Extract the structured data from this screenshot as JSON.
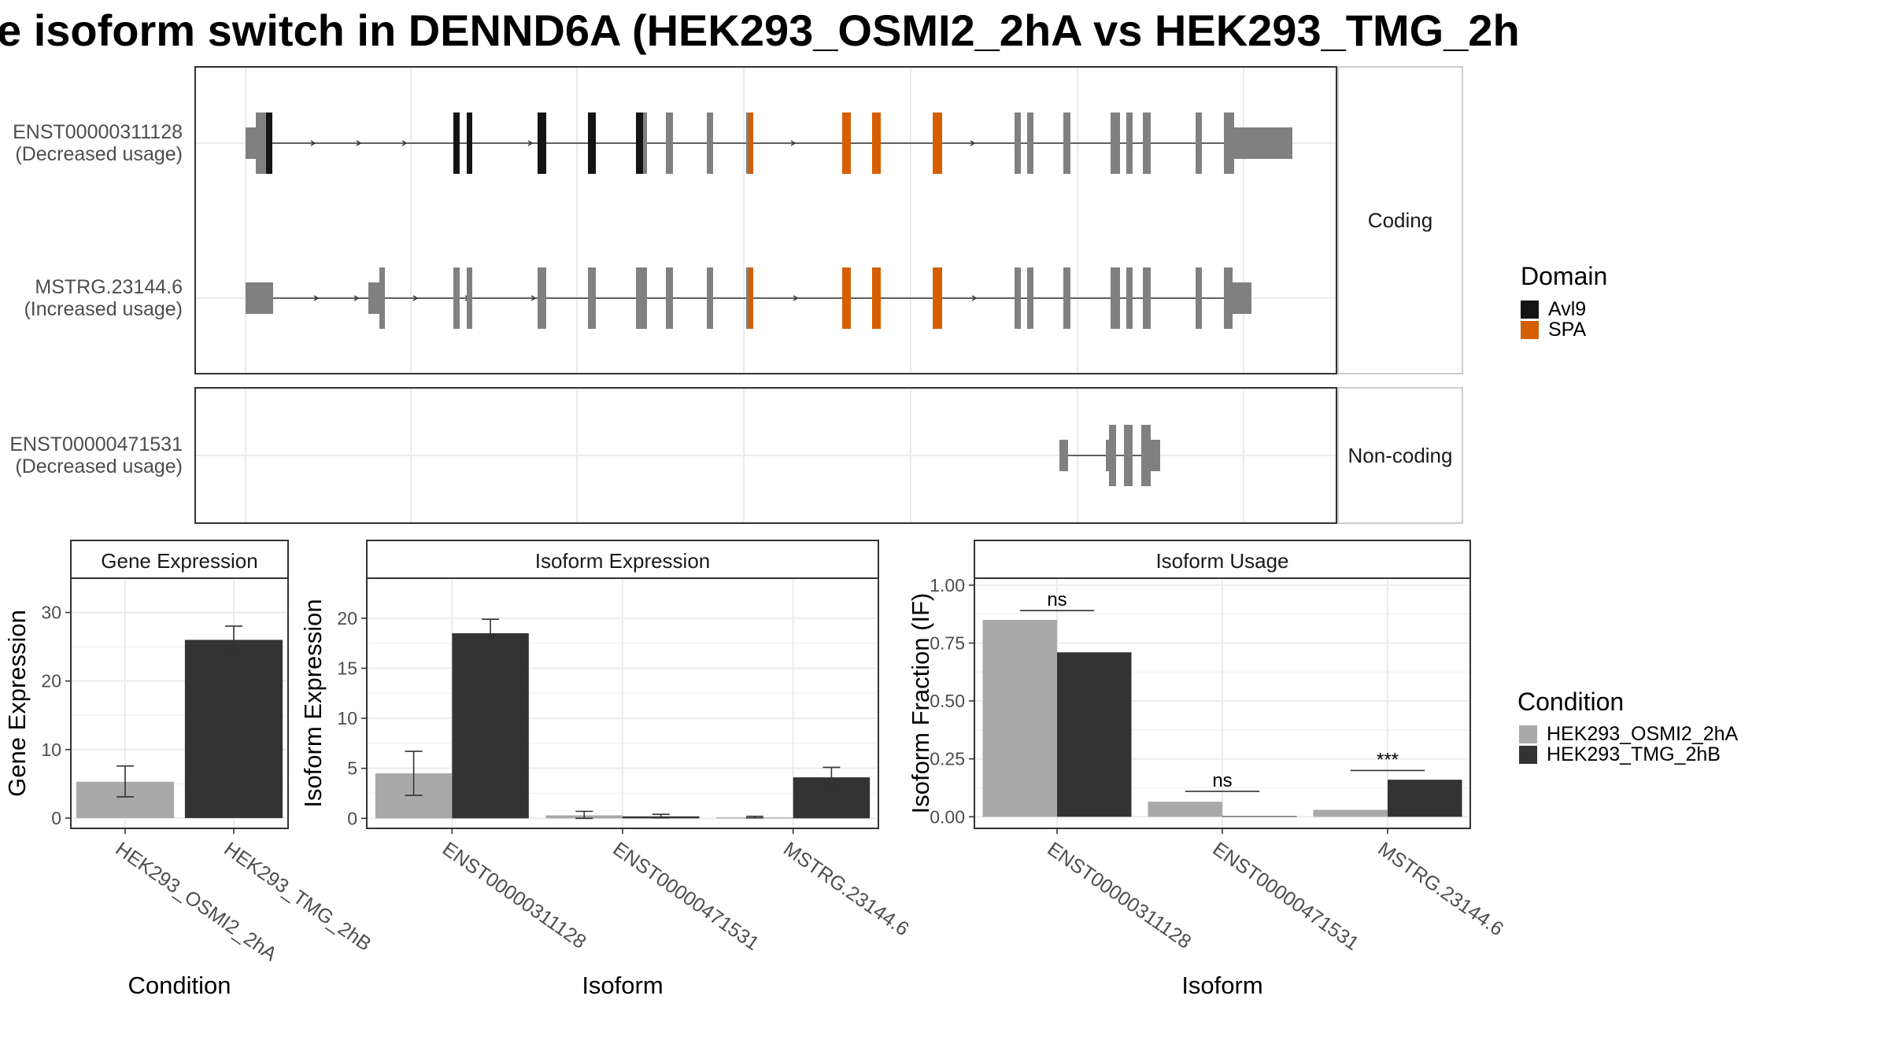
{
  "title": "e isoform switch in DENND6A (HEK293_OSMI2_2hA vs HEK293_TMG_2h",
  "colors": {
    "condition_a": "#a9a9a9",
    "condition_b": "#333333",
    "domain_avl9": "#141414",
    "domain_spa": "#d55e00",
    "exon_plain": "#808080",
    "panel_border": "#333333",
    "strip_fill": "#ffffff",
    "grid": "#ebebeb"
  },
  "structure": {
    "coding_label": "Coding",
    "noncoding_label": "Non-coding",
    "transcripts": [
      {
        "id": "ENST00000311128",
        "usage": "(Decreased usage)",
        "group": "coding"
      },
      {
        "id": "MSTRG.23144.6",
        "usage": "(Increased usage)",
        "group": "coding"
      },
      {
        "id": "ENST00000471531",
        "usage": "(Decreased usage)",
        "group": "non-coding"
      }
    ],
    "legend_title": "Domain",
    "legend_items": [
      {
        "label": "Avl9",
        "color": "#141414"
      },
      {
        "label": "SPA",
        "color": "#d55e00"
      }
    ]
  },
  "condition_legend": {
    "title": "Condition",
    "items": [
      {
        "label": "HEK293_OSMI2_2hA",
        "color": "#a9a9a9"
      },
      {
        "label": "HEK293_TMG_2hB",
        "color": "#333333"
      }
    ]
  },
  "chart_data": [
    {
      "type": "bar",
      "title": "Gene Expression",
      "xlabel": "Condition",
      "ylabel": "Gene Expression",
      "categories": [
        "HEK293_OSMI2_2hA",
        "HEK293_TMG_2hB"
      ],
      "ylim": [
        -1.5,
        35
      ],
      "yticks": [
        0,
        10,
        20,
        30
      ],
      "ytick_labels": [
        "0",
        "10",
        "20",
        "30"
      ],
      "bars": [
        {
          "category": "HEK293_OSMI2_2hA",
          "condition": "HEK293_OSMI2_2hA",
          "value": 5.3,
          "err_low": 3.1,
          "err_high": 7.6
        },
        {
          "category": "HEK293_TMG_2hB",
          "condition": "HEK293_TMG_2hB",
          "value": 26.0,
          "err_low": 24.2,
          "err_high": 28.0
        }
      ]
    },
    {
      "type": "bar",
      "title": "Isoform Expression",
      "xlabel": "Isoform",
      "ylabel": "Isoform Expression",
      "categories": [
        "ENST00000311128",
        "ENST00000471531",
        "MSTRG.23144.6"
      ],
      "ylim": [
        -1,
        24
      ],
      "yticks": [
        0,
        5,
        10,
        15,
        20
      ],
      "ytick_labels": [
        "0",
        "5",
        "10",
        "15",
        "20"
      ],
      "series": [
        {
          "name": "HEK293_OSMI2_2hA",
          "values": [
            4.5,
            0.3,
            0.1
          ],
          "err_low": [
            2.3,
            0.0,
            0.05
          ],
          "err_high": [
            6.7,
            0.7,
            0.2
          ]
        },
        {
          "name": "HEK293_TMG_2hB",
          "values": [
            18.5,
            0.2,
            4.1
          ],
          "err_low": [
            17.2,
            0.05,
            3.2
          ],
          "err_high": [
            19.9,
            0.4,
            5.1
          ]
        }
      ]
    },
    {
      "type": "bar",
      "title": "Isoform Usage",
      "xlabel": "Isoform",
      "ylabel": "Isoform Fraction (IF)",
      "categories": [
        "ENST00000311128",
        "ENST00000471531",
        "MSTRG.23144.6"
      ],
      "ylim": [
        -0.05,
        1.03
      ],
      "yticks": [
        0,
        0.25,
        0.5,
        0.75,
        1.0
      ],
      "ytick_labels": [
        "0.00",
        "0.25",
        "0.50",
        "0.75",
        "1.00"
      ],
      "series": [
        {
          "name": "HEK293_OSMI2_2hA",
          "values": [
            0.85,
            0.065,
            0.03
          ]
        },
        {
          "name": "HEK293_TMG_2hB",
          "values": [
            0.71,
            0.003,
            0.16
          ]
        }
      ],
      "significance": [
        {
          "category": "ENST00000311128",
          "label": "ns",
          "y": 0.89
        },
        {
          "category": "ENST00000471531",
          "label": "ns",
          "y": 0.11
        },
        {
          "category": "MSTRG.23144.6",
          "label": "***",
          "y": 0.2
        }
      ]
    }
  ]
}
